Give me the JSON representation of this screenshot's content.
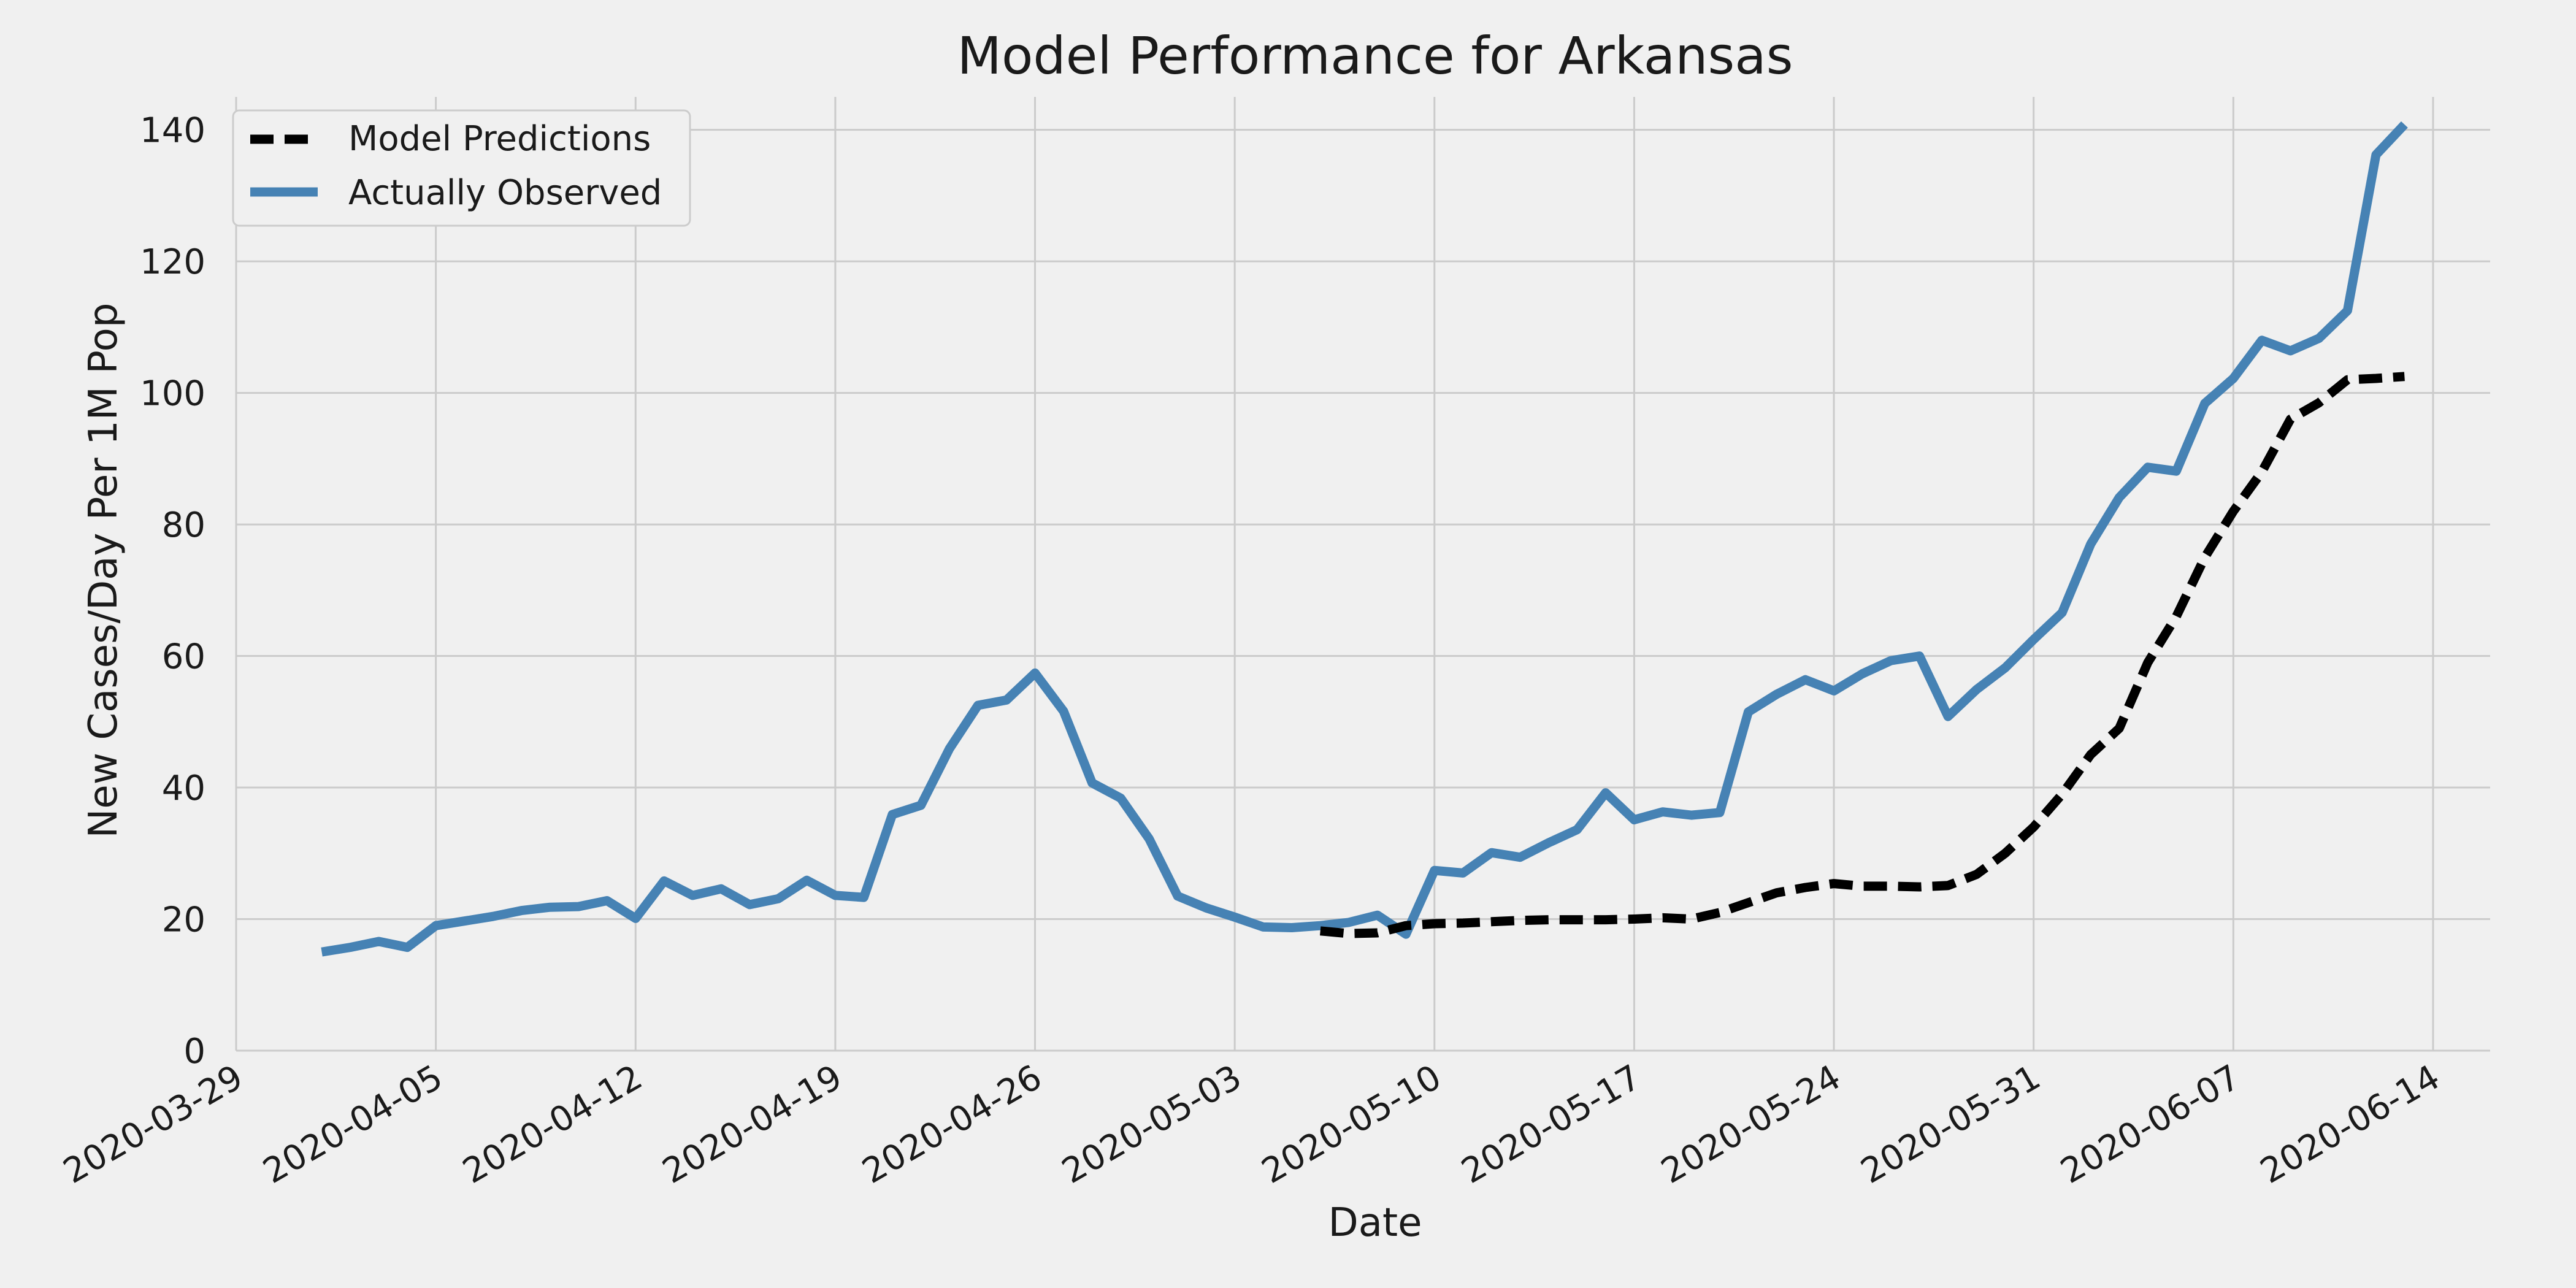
{
  "chart_data": {
    "type": "line",
    "title": "Model Performance for Arkansas",
    "xlabel": "Date",
    "ylabel": "New Cases/Day Per 1M Pop",
    "ylim": [
      0,
      145
    ],
    "xlim": [
      "2020-03-29",
      "2020-06-16"
    ],
    "yticks": [
      0,
      20,
      40,
      60,
      80,
      100,
      120,
      140
    ],
    "xticks": [
      "2020-03-29",
      "2020-04-05",
      "2020-04-12",
      "2020-04-19",
      "2020-04-26",
      "2020-05-03",
      "2020-05-10",
      "2020-05-17",
      "2020-05-24",
      "2020-05-31",
      "2020-06-07",
      "2020-06-14"
    ],
    "grid": true,
    "legend_position": "top-left",
    "series": [
      {
        "name": "Model Predictions",
        "color": "#000000",
        "style": "dashed",
        "points": [
          [
            "2020-05-06",
            18.2
          ],
          [
            "2020-05-07",
            17.8
          ],
          [
            "2020-05-08",
            17.9
          ],
          [
            "2020-05-09",
            19.0
          ],
          [
            "2020-05-10",
            19.3
          ],
          [
            "2020-05-11",
            19.4
          ],
          [
            "2020-05-12",
            19.6
          ],
          [
            "2020-05-13",
            19.8
          ],
          [
            "2020-05-14",
            19.9
          ],
          [
            "2020-05-15",
            19.9
          ],
          [
            "2020-05-16",
            19.9
          ],
          [
            "2020-05-17",
            20.0
          ],
          [
            "2020-05-18",
            20.2
          ],
          [
            "2020-05-19",
            20.0
          ],
          [
            "2020-05-20",
            21.0
          ],
          [
            "2020-05-21",
            22.5
          ],
          [
            "2020-05-22",
            24.0
          ],
          [
            "2020-05-23",
            24.8
          ],
          [
            "2020-05-24",
            25.4
          ],
          [
            "2020-05-25",
            25.0
          ],
          [
            "2020-05-26",
            25.0
          ],
          [
            "2020-05-27",
            24.9
          ],
          [
            "2020-05-28",
            25.1
          ],
          [
            "2020-05-29",
            26.8
          ],
          [
            "2020-05-30",
            30.0
          ],
          [
            "2020-05-31",
            34.0
          ],
          [
            "2020-06-01",
            39.0
          ],
          [
            "2020-06-02",
            45.0
          ],
          [
            "2020-06-03",
            49.0
          ],
          [
            "2020-06-04",
            59.0
          ],
          [
            "2020-06-05",
            66.0
          ],
          [
            "2020-06-06",
            75.0
          ],
          [
            "2020-06-07",
            82.0
          ],
          [
            "2020-06-08",
            88.0
          ],
          [
            "2020-06-09",
            96.0
          ],
          [
            "2020-06-10",
            98.5
          ],
          [
            "2020-06-11",
            102.0
          ],
          [
            "2020-06-12",
            102.2
          ],
          [
            "2020-06-13",
            102.5
          ]
        ]
      },
      {
        "name": "Actually Observed",
        "color": "#4682b4",
        "style": "solid",
        "points": [
          [
            "2020-04-01",
            15.0
          ],
          [
            "2020-04-02",
            15.7
          ],
          [
            "2020-04-03",
            16.6
          ],
          [
            "2020-04-04",
            15.7
          ],
          [
            "2020-04-05",
            19.0
          ],
          [
            "2020-04-06",
            19.7
          ],
          [
            "2020-04-07",
            20.4
          ],
          [
            "2020-04-08",
            21.3
          ],
          [
            "2020-04-09",
            21.8
          ],
          [
            "2020-04-10",
            21.9
          ],
          [
            "2020-04-11",
            22.8
          ],
          [
            "2020-04-12",
            20.1
          ],
          [
            "2020-04-13",
            25.8
          ],
          [
            "2020-04-14",
            23.6
          ],
          [
            "2020-04-15",
            24.6
          ],
          [
            "2020-04-16",
            22.2
          ],
          [
            "2020-04-17",
            23.1
          ],
          [
            "2020-04-18",
            25.9
          ],
          [
            "2020-04-19",
            23.6
          ],
          [
            "2020-04-20",
            23.3
          ],
          [
            "2020-04-21",
            35.9
          ],
          [
            "2020-04-22",
            37.3
          ],
          [
            "2020-04-23",
            45.9
          ],
          [
            "2020-04-24",
            52.5
          ],
          [
            "2020-04-25",
            53.3
          ],
          [
            "2020-04-26",
            57.4
          ],
          [
            "2020-04-27",
            51.6
          ],
          [
            "2020-04-28",
            40.7
          ],
          [
            "2020-04-29",
            38.4
          ],
          [
            "2020-04-30",
            32.2
          ],
          [
            "2020-05-01",
            23.5
          ],
          [
            "2020-05-02",
            21.7
          ],
          [
            "2020-05-03",
            20.3
          ],
          [
            "2020-05-04",
            18.8
          ],
          [
            "2020-05-05",
            18.7
          ],
          [
            "2020-05-06",
            19.0
          ],
          [
            "2020-05-07",
            19.5
          ],
          [
            "2020-05-08",
            20.6
          ],
          [
            "2020-05-09",
            17.7
          ],
          [
            "2020-05-10",
            27.4
          ],
          [
            "2020-05-11",
            27.0
          ],
          [
            "2020-05-12",
            30.1
          ],
          [
            "2020-05-13",
            29.4
          ],
          [
            "2020-05-14",
            31.6
          ],
          [
            "2020-05-15",
            33.6
          ],
          [
            "2020-05-16",
            39.2
          ],
          [
            "2020-05-17",
            35.1
          ],
          [
            "2020-05-18",
            36.3
          ],
          [
            "2020-05-19",
            35.8
          ],
          [
            "2020-05-20",
            36.2
          ],
          [
            "2020-05-21",
            51.5
          ],
          [
            "2020-05-22",
            54.2
          ],
          [
            "2020-05-23",
            56.4
          ],
          [
            "2020-05-24",
            54.7
          ],
          [
            "2020-05-25",
            57.3
          ],
          [
            "2020-05-26",
            59.3
          ],
          [
            "2020-05-27",
            60.0
          ],
          [
            "2020-05-28",
            50.8
          ],
          [
            "2020-05-29",
            54.9
          ],
          [
            "2020-05-30",
            58.2
          ],
          [
            "2020-05-31",
            62.5
          ],
          [
            "2020-06-01",
            66.6
          ],
          [
            "2020-06-02",
            77.0
          ],
          [
            "2020-06-03",
            84.1
          ],
          [
            "2020-06-04",
            88.7
          ],
          [
            "2020-06-05",
            88.1
          ],
          [
            "2020-06-06",
            98.4
          ],
          [
            "2020-06-07",
            102.2
          ],
          [
            "2020-06-08",
            108.0
          ],
          [
            "2020-06-09",
            106.4
          ],
          [
            "2020-06-10",
            108.3
          ],
          [
            "2020-06-11",
            112.5
          ],
          [
            "2020-06-12",
            136.2
          ],
          [
            "2020-06-13",
            140.8
          ]
        ]
      }
    ]
  }
}
